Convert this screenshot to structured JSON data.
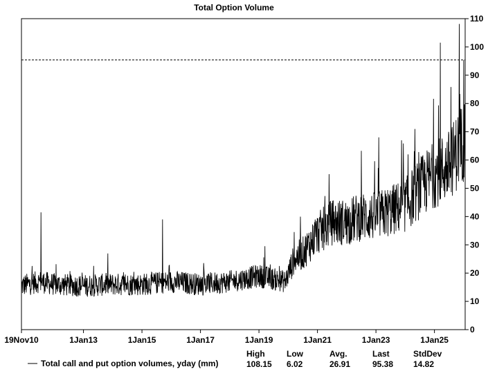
{
  "chart_data": {
    "type": "line",
    "title": "Total Option Volume",
    "xlabel": "",
    "ylabel": "",
    "x_ticks": [
      "19Nov10",
      "1Jan13",
      "1Jan15",
      "1Jan17",
      "1Jan19",
      "1Jan21",
      "1Jan23",
      "1Jan25"
    ],
    "x_tick_years": [
      2010.88,
      2013.0,
      2015.0,
      2017.0,
      2019.0,
      2021.0,
      2023.0,
      2025.0
    ],
    "x_range": [
      2010.88,
      2026.05
    ],
    "ylim": [
      0,
      110
    ],
    "y_ticks": [
      0,
      10,
      20,
      30,
      40,
      50,
      60,
      70,
      80,
      90,
      100,
      110
    ],
    "y_axis_side": "right",
    "reference_line": {
      "label": "Last",
      "value": 95.38,
      "style": "dashed"
    },
    "series": [
      {
        "name": "Total call and put option volumes, yday (mm)",
        "color": "#000000",
        "trend": [
          [
            2010.88,
            15.5
          ],
          [
            2011.5,
            17
          ],
          [
            2012.0,
            16
          ],
          [
            2013.0,
            15.5
          ],
          [
            2014.0,
            16
          ],
          [
            2015.0,
            16
          ],
          [
            2016.0,
            17
          ],
          [
            2017.0,
            16
          ],
          [
            2018.0,
            17
          ],
          [
            2019.0,
            19
          ],
          [
            2019.9,
            17
          ],
          [
            2020.2,
            25
          ],
          [
            2020.5,
            27
          ],
          [
            2021.0,
            34
          ],
          [
            2021.5,
            38
          ],
          [
            2022.0,
            38
          ],
          [
            2022.5,
            40
          ],
          [
            2023.0,
            40
          ],
          [
            2023.5,
            42
          ],
          [
            2024.0,
            44
          ],
          [
            2024.5,
            50
          ],
          [
            2025.0,
            55
          ],
          [
            2025.5,
            58
          ],
          [
            2026.05,
            68
          ]
        ],
        "spikes": [
          [
            2011.55,
            41.5
          ],
          [
            2015.7,
            39
          ],
          [
            2019.2,
            29.5
          ],
          [
            2021.4,
            55
          ],
          [
            2023.1,
            68
          ],
          [
            2024.1,
            62
          ],
          [
            2025.2,
            101.5
          ],
          [
            2025.85,
            108.15
          ],
          [
            2026.0,
            95.38
          ]
        ]
      }
    ],
    "stats": {
      "headers": [
        "High",
        "Low",
        "Avg.",
        "Last",
        "StdDev"
      ],
      "values": [
        "108.15",
        "6.02",
        "26.91",
        "95.38",
        "14.82"
      ]
    }
  }
}
